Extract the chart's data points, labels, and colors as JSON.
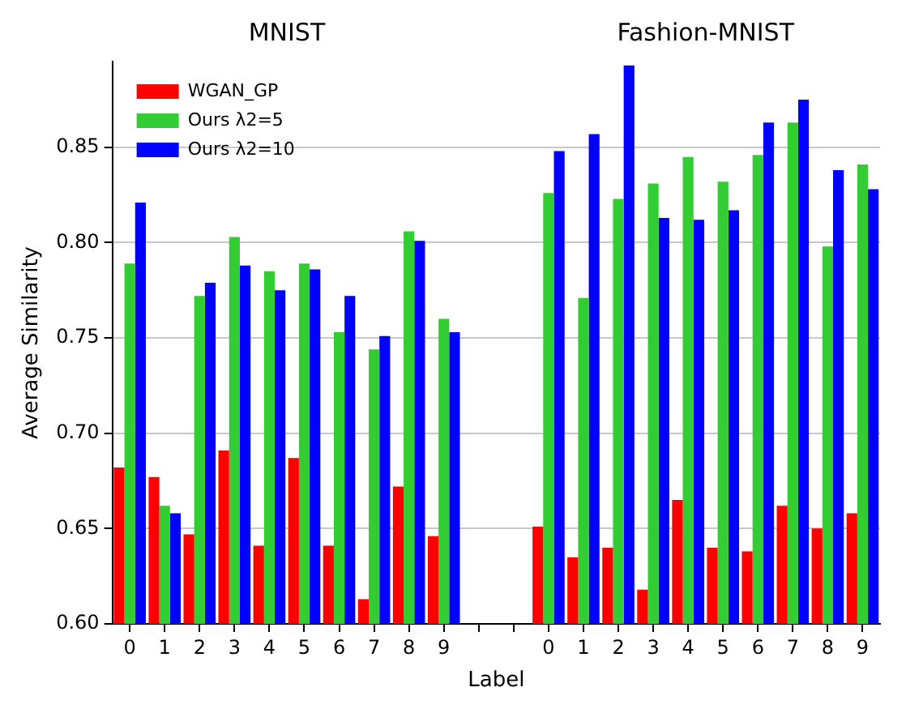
{
  "chart_data": {
    "type": "bar",
    "xlabel": "Label",
    "ylabel": "Average Similarity",
    "annotations": [
      "MNIST",
      "Fashion-MNIST"
    ],
    "categories": [
      "0",
      "1",
      "2",
      "3",
      "4",
      "5",
      "6",
      "7",
      "8",
      "9",
      null,
      null,
      "0",
      "1",
      "2",
      "3",
      "4",
      "5",
      "6",
      "7",
      "8",
      "9"
    ],
    "series": [
      {
        "name": "WGAN_GP",
        "color": "#ff0000",
        "values": [
          0.682,
          0.677,
          0.647,
          0.691,
          0.641,
          0.687,
          0.641,
          0.613,
          0.672,
          0.646,
          null,
          null,
          0.651,
          0.635,
          0.64,
          0.618,
          0.665,
          0.64,
          0.638,
          0.662,
          0.65,
          0.658
        ]
      },
      {
        "name": "Ours λ2=5",
        "color": "#32cd32",
        "values": [
          0.789,
          0.662,
          0.772,
          0.803,
          0.785,
          0.789,
          0.753,
          0.744,
          0.806,
          0.76,
          null,
          null,
          0.826,
          0.771,
          0.823,
          0.831,
          0.845,
          0.832,
          0.846,
          0.863,
          0.798,
          0.841
        ]
      },
      {
        "name": "Ours λ2=10",
        "color": "#0000ff",
        "values": [
          0.821,
          0.658,
          0.779,
          0.788,
          0.775,
          0.786,
          0.772,
          0.751,
          0.801,
          0.753,
          null,
          null,
          0.848,
          0.857,
          0.893,
          0.813,
          0.812,
          0.817,
          0.863,
          0.875,
          0.838,
          0.828
        ]
      }
    ],
    "ylim": [
      0.6,
      0.895
    ],
    "yticks": [
      {
        "value": 0.6,
        "label": "0.60"
      },
      {
        "value": 0.65,
        "label": "0.65"
      },
      {
        "value": 0.7,
        "label": "0.70"
      },
      {
        "value": 0.75,
        "label": "0.75"
      },
      {
        "value": 0.8,
        "label": "0.80"
      },
      {
        "value": 0.85,
        "label": "0.85"
      }
    ],
    "grid": "y",
    "legend": "top left"
  }
}
